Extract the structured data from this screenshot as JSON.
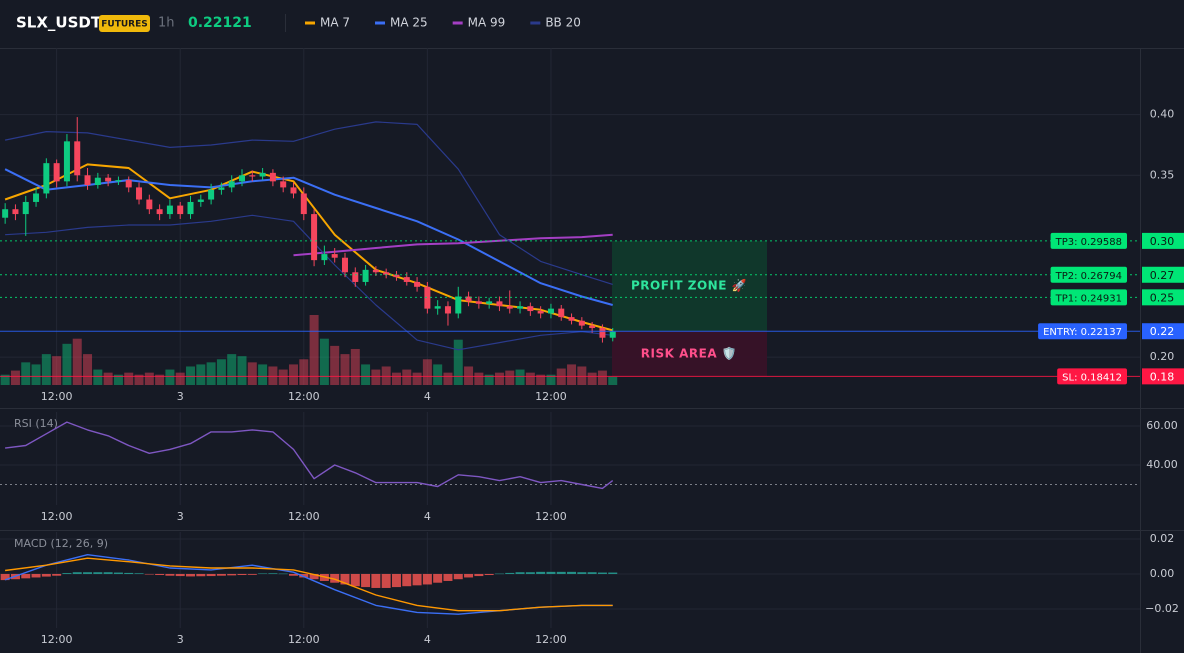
{
  "header": {
    "symbol": "SLX_USDT",
    "badge": "FUTURES",
    "interval": "1h",
    "last_price": 0.22121
  },
  "chart_data": [
    {
      "type": "candlestick",
      "up_color": "#0ecb81",
      "down_color": "#f6465d",
      "xlim": [
        -0.5,
        110.2
      ],
      "ylim": [
        0.177,
        0.455
      ],
      "xticks": [
        {
          "value": 5,
          "label": "12:00"
        },
        {
          "value": 17,
          "label": "3"
        },
        {
          "value": 29,
          "label": "12:00"
        },
        {
          "value": 41,
          "label": "4"
        },
        {
          "value": 53,
          "label": "12:00"
        }
      ],
      "yticks": [
        {
          "value": 0.2,
          "label": "0.20"
        },
        {
          "value": 0.35,
          "label": "0.35"
        },
        {
          "value": 0.4,
          "label": "0.40"
        }
      ],
      "open": [
        0.315,
        0.322,
        0.318,
        0.328,
        0.335,
        0.36,
        0.345,
        0.378,
        0.35,
        0.342,
        0.348,
        0.345,
        0.346,
        0.34,
        0.33,
        0.322,
        0.318,
        0.325,
        0.318,
        0.328,
        0.33,
        0.338,
        0.34,
        0.345,
        0.35,
        0.349,
        0.352,
        0.345,
        0.34,
        0.335,
        0.318,
        0.28,
        0.285,
        0.282,
        0.27,
        0.262,
        0.272,
        0.27,
        0.268,
        0.266,
        0.262,
        0.258,
        0.24,
        0.242,
        0.236,
        0.25,
        0.246,
        0.244,
        0.246,
        0.242,
        0.24,
        0.242,
        0.238,
        0.236,
        0.24,
        0.233,
        0.23,
        0.226,
        0.224,
        0.216
      ],
      "high": [
        0.327,
        0.326,
        0.333,
        0.34,
        0.364,
        0.363,
        0.384,
        0.398,
        0.356,
        0.352,
        0.351,
        0.349,
        0.349,
        0.344,
        0.334,
        0.326,
        0.33,
        0.328,
        0.333,
        0.334,
        0.343,
        0.344,
        0.35,
        0.355,
        0.354,
        0.356,
        0.355,
        0.349,
        0.344,
        0.34,
        0.322,
        0.292,
        0.29,
        0.286,
        0.274,
        0.276,
        0.275,
        0.273,
        0.271,
        0.27,
        0.266,
        0.262,
        0.247,
        0.246,
        0.258,
        0.254,
        0.25,
        0.249,
        0.25,
        0.255,
        0.246,
        0.245,
        0.242,
        0.244,
        0.243,
        0.236,
        0.233,
        0.229,
        0.227,
        0.224
      ],
      "low": [
        0.31,
        0.313,
        0.3,
        0.324,
        0.331,
        0.34,
        0.341,
        0.345,
        0.338,
        0.339,
        0.341,
        0.342,
        0.336,
        0.326,
        0.318,
        0.313,
        0.314,
        0.314,
        0.314,
        0.324,
        0.326,
        0.334,
        0.336,
        0.341,
        0.345,
        0.346,
        0.341,
        0.336,
        0.331,
        0.313,
        0.275,
        0.276,
        0.278,
        0.266,
        0.258,
        0.259,
        0.267,
        0.265,
        0.263,
        0.259,
        0.254,
        0.236,
        0.235,
        0.226,
        0.232,
        0.242,
        0.24,
        0.24,
        0.238,
        0.236,
        0.236,
        0.234,
        0.232,
        0.232,
        0.23,
        0.227,
        0.223,
        0.22,
        0.212,
        0.213
      ],
      "close": [
        0.322,
        0.318,
        0.328,
        0.335,
        0.36,
        0.345,
        0.378,
        0.35,
        0.342,
        0.348,
        0.345,
        0.346,
        0.34,
        0.33,
        0.322,
        0.318,
        0.325,
        0.318,
        0.328,
        0.33,
        0.338,
        0.34,
        0.345,
        0.35,
        0.349,
        0.352,
        0.345,
        0.34,
        0.335,
        0.318,
        0.28,
        0.285,
        0.282,
        0.27,
        0.262,
        0.272,
        0.27,
        0.268,
        0.266,
        0.262,
        0.258,
        0.24,
        0.242,
        0.236,
        0.25,
        0.246,
        0.244,
        0.246,
        0.242,
        0.24,
        0.242,
        0.238,
        0.236,
        0.24,
        0.233,
        0.23,
        0.226,
        0.224,
        0.216,
        0.221
      ],
      "volume": [
        10,
        14,
        22,
        20,
        30,
        28,
        40,
        45,
        30,
        15,
        12,
        10,
        12,
        10,
        12,
        10,
        15,
        12,
        18,
        20,
        22,
        25,
        30,
        28,
        22,
        20,
        18,
        15,
        20,
        25,
        68,
        45,
        38,
        30,
        35,
        20,
        15,
        18,
        12,
        15,
        12,
        25,
        20,
        12,
        44,
        18,
        12,
        10,
        12,
        14,
        15,
        12,
        10,
        10,
        16,
        20,
        18,
        12,
        14,
        8
      ],
      "line_x": [
        0,
        4,
        8,
        12,
        16,
        20,
        24,
        28,
        32,
        36,
        40,
        44,
        48,
        52,
        56,
        59
      ],
      "series": [
        {
          "name": "MA 7",
          "color": "#f7a600",
          "values": [
            0.33,
            0.342,
            0.359,
            0.356,
            0.331,
            0.338,
            0.353,
            0.345,
            0.301,
            0.272,
            0.261,
            0.247,
            0.243,
            0.239,
            0.229,
            0.222
          ]
        },
        {
          "name": "MA 25",
          "color": "#3b6ff5",
          "values": [
            0.355,
            0.338,
            0.342,
            0.346,
            0.342,
            0.34,
            0.345,
            0.348,
            0.334,
            0.323,
            0.312,
            0.297,
            0.279,
            0.261,
            0.25,
            0.243
          ]
        },
        {
          "name": "MA 99",
          "color": "#a43fc4",
          "values": [
            null,
            null,
            null,
            null,
            null,
            null,
            null,
            0.284,
            0.287,
            0.29,
            0.293,
            0.294,
            0.296,
            0.298,
            0.299,
            0.301
          ]
        },
        {
          "name": "BB 20",
          "color": "#2a3a8c",
          "upper": [
            0.379,
            0.386,
            0.385,
            0.379,
            0.373,
            0.375,
            0.379,
            0.378,
            0.388,
            0.394,
            0.392,
            0.355,
            0.301,
            0.279,
            0.268,
            0.26
          ],
          "lower": [
            0.301,
            0.303,
            0.307,
            0.309,
            0.309,
            0.312,
            0.317,
            0.312,
            0.276,
            0.243,
            0.214,
            0.206,
            0.212,
            0.218,
            0.221,
            0.218
          ]
        }
      ],
      "levels": [
        {
          "label": "TP3: 0.29588",
          "value": 0.29588,
          "axis_label": "0.30",
          "color": "#00e676",
          "text_color": "#0b1a12",
          "style": "dotted"
        },
        {
          "label": "TP2: 0.26794",
          "value": 0.26794,
          "axis_label": "0.27",
          "color": "#00e676",
          "text_color": "#0b1a12",
          "style": "dotted"
        },
        {
          "label": "TP1: 0.24931",
          "value": 0.24931,
          "axis_label": "0.25",
          "color": "#00e676",
          "text_color": "#0b1a12",
          "style": "dotted"
        },
        {
          "label": "ENTRY: 0.22137",
          "value": 0.22137,
          "axis_label": "0.22",
          "color": "#2962ff",
          "text_color": "#ffffff",
          "style": "solid"
        },
        {
          "label": "SL: 0.18412",
          "value": 0.18412,
          "axis_label": "0.18",
          "color": "#ff1744",
          "text_color": "#ffffff",
          "style": "solid"
        }
      ],
      "zones": [
        {
          "label": "PROFIT ZONE 🚀",
          "from": 0.22137,
          "to": 0.29588,
          "color": "#0f3b2c",
          "text_color": "#2ee59d"
        },
        {
          "label": "RISK AREA 🛡️",
          "from": 0.18412,
          "to": 0.22137,
          "color": "#3a1228",
          "text_color": "#ff4f8b"
        }
      ]
    },
    {
      "type": "line",
      "title": "RSI (14)",
      "xlim": [
        -0.5,
        110.2
      ],
      "ylim": [
        19.5,
        67.2
      ],
      "xticks": [
        {
          "value": 5,
          "label": "12:00"
        },
        {
          "value": 17,
          "label": "3"
        },
        {
          "value": 29,
          "label": "12:00"
        },
        {
          "value": 41,
          "label": "4"
        },
        {
          "value": 53,
          "label": "12:00"
        }
      ],
      "yticks": [
        {
          "value": 40,
          "label": "40.00"
        },
        {
          "value": 60,
          "label": "60.00"
        }
      ],
      "hlines": [
        30
      ],
      "line_x": [
        0,
        2,
        4,
        6,
        8,
        10,
        12,
        14,
        16,
        18,
        20,
        22,
        24,
        26,
        28,
        30,
        32,
        34,
        36,
        38,
        40,
        42,
        44,
        46,
        48,
        50,
        52,
        54,
        56,
        58,
        59
      ],
      "series": [
        {
          "name": "RSI",
          "color": "#7e57c2",
          "values": [
            48.7,
            50,
            56,
            62,
            58,
            55,
            50,
            46,
            48,
            51,
            57,
            57,
            58,
            57,
            48,
            33,
            40,
            36,
            31,
            31,
            31,
            29,
            35,
            34,
            32,
            34,
            31,
            32,
            30,
            28,
            32
          ]
        }
      ]
    },
    {
      "type": "line",
      "title": "MACD (12, 26, 9)",
      "xlim": [
        -0.5,
        110.2
      ],
      "ylim": [
        -0.0309,
        0.024
      ],
      "xticks": [
        {
          "value": 5,
          "label": "12:00"
        },
        {
          "value": 17,
          "label": "3"
        },
        {
          "value": 29,
          "label": "12:00"
        },
        {
          "value": 41,
          "label": "4"
        },
        {
          "value": 53,
          "label": "12:00"
        }
      ],
      "yticks": [
        {
          "value": -0.02,
          "label": "−0.02"
        },
        {
          "value": 0,
          "label": "0.00"
        },
        {
          "value": 0.02,
          "label": "0.02"
        }
      ],
      "histogram": {
        "up_color": "#26a69a",
        "down_color": "#ef5350",
        "values": [
          -0.0035,
          -0.003,
          -0.0025,
          -0.002,
          -0.0015,
          -0.001,
          0.0005,
          0.001,
          0.001,
          0.001,
          0.001,
          0.0008,
          0.0006,
          0.0004,
          -0.0003,
          -0.0006,
          -0.001,
          -0.0012,
          -0.0014,
          -0.0013,
          -0.0012,
          -0.001,
          -0.0008,
          -0.0006,
          -0.0005,
          0.0003,
          0.0004,
          0.0002,
          -0.001,
          -0.002,
          -0.003,
          -0.004,
          -0.005,
          -0.006,
          -0.007,
          -0.0075,
          -0.008,
          -0.008,
          -0.0075,
          -0.007,
          -0.0065,
          -0.006,
          -0.005,
          -0.004,
          -0.003,
          -0.002,
          -0.0012,
          -0.0006,
          0.0002,
          0.0006,
          0.001,
          0.001,
          0.0012,
          0.0012,
          0.0012,
          0.0012,
          0.001,
          0.001,
          0.0008,
          0.0008
        ]
      },
      "line_x": [
        0,
        4,
        8,
        12,
        16,
        20,
        24,
        28,
        32,
        36,
        40,
        44,
        48,
        52,
        56,
        59
      ],
      "series": [
        {
          "name": "MACD",
          "color": "#3b6ff5",
          "values": [
            -0.0034,
            0.005,
            0.011,
            0.008,
            0.0034,
            0.0023,
            0.005,
            0.001,
            -0.009,
            -0.018,
            -0.022,
            -0.023,
            -0.021,
            -0.019,
            -0.018,
            -0.018
          ]
        },
        {
          "name": "Signal",
          "color": "#ff9800",
          "values": [
            0.002,
            0.005,
            0.009,
            0.007,
            0.0046,
            0.0034,
            0.0034,
            0.0023,
            -0.003,
            -0.012,
            -0.018,
            -0.021,
            -0.021,
            -0.019,
            -0.018,
            -0.018
          ]
        }
      ]
    }
  ]
}
